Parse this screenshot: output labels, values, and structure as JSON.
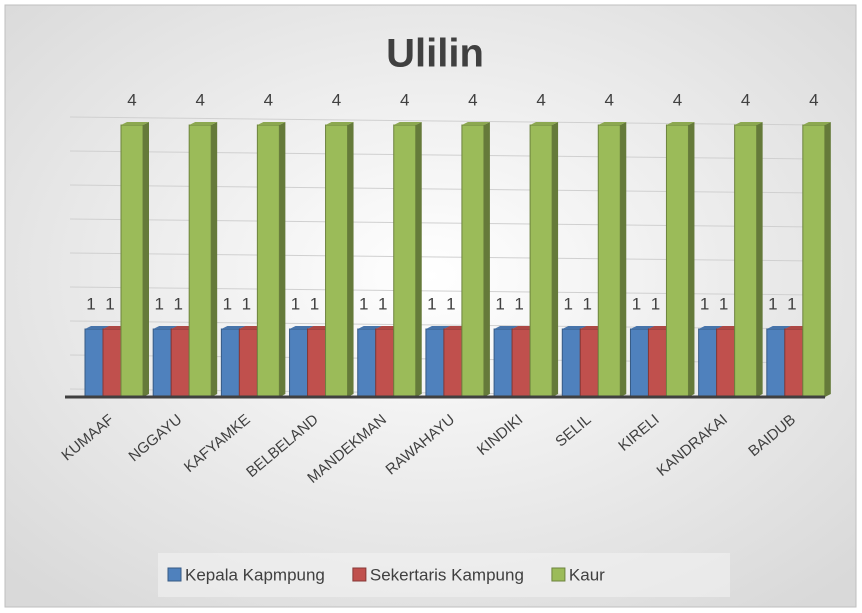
{
  "chart_data": {
    "type": "bar",
    "title": "Ulilin",
    "categories": [
      "KUMAAF",
      "NGGAYU",
      "KAFYAMKE",
      "BELBELAND",
      "MANDEKMAN",
      "RAWAHAYU",
      "KINDIKI",
      "SELIL",
      "KIRELI",
      "KANDRAKAI",
      "BAIDUB"
    ],
    "series": [
      {
        "name": "Kepala Kapmpung",
        "color": "#4f81bd",
        "values": [
          1,
          1,
          1,
          1,
          1,
          1,
          1,
          1,
          1,
          1,
          1
        ]
      },
      {
        "name": "Sekertaris Kampung",
        "color": "#c0504d",
        "values": [
          1,
          1,
          1,
          1,
          1,
          1,
          1,
          1,
          1,
          1,
          1
        ]
      },
      {
        "name": "Kaur",
        "color": "#9bbb59",
        "values": [
          4,
          4,
          4,
          4,
          4,
          4,
          4,
          4,
          4,
          4,
          4
        ]
      }
    ],
    "ylim": [
      0,
      4
    ],
    "yticks": [
      0,
      0.5,
      1,
      1.5,
      2,
      2.5,
      3,
      3.5,
      4
    ],
    "grid": true,
    "legend": "bottom"
  }
}
